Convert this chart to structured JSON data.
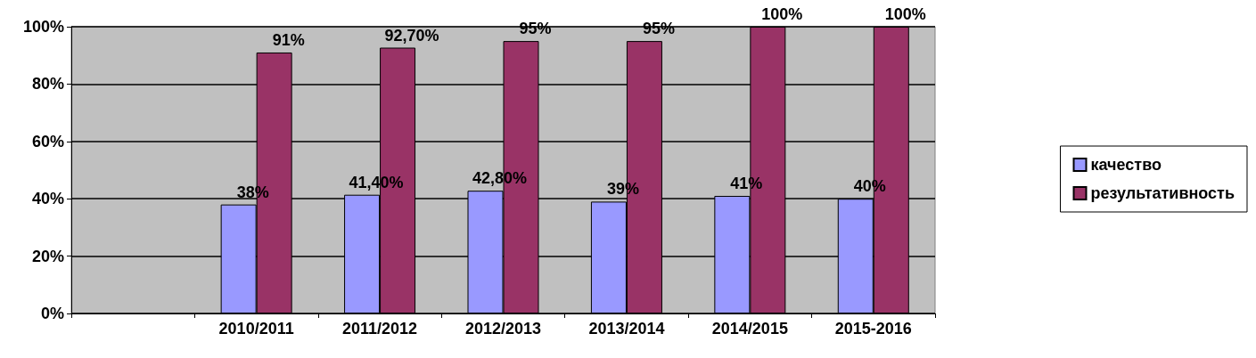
{
  "chart_data": {
    "type": "bar",
    "categories": [
      null,
      "2010/2011",
      "2011/2012",
      "2012/2013",
      "2013/2014",
      "2014/2015",
      "2015-2016"
    ],
    "series": [
      {
        "name": "качество",
        "color": "#9999ff",
        "values": [
          null,
          38,
          41.4,
          42.8,
          39,
          41,
          40
        ],
        "value_labels": [
          null,
          "38%",
          "41,40%",
          "42,80%",
          "39%",
          "41%",
          "40%"
        ]
      },
      {
        "name": "результативность",
        "color": "#993366",
        "values": [
          null,
          91,
          92.7,
          95,
          95,
          100,
          100
        ],
        "value_labels": [
          null,
          "91%",
          "92,70%",
          "95%",
          "95%",
          "100%",
          "100%"
        ]
      }
    ],
    "ylim": [
      0,
      100
    ],
    "yticks": [
      {
        "value": 0,
        "label": "0%"
      },
      {
        "value": 20,
        "label": "20%"
      },
      {
        "value": 40,
        "label": "40%"
      },
      {
        "value": 60,
        "label": "60%"
      },
      {
        "value": 80,
        "label": "80%"
      },
      {
        "value": 100,
        "label": "100%"
      }
    ],
    "grid": "y",
    "legend": "right"
  }
}
